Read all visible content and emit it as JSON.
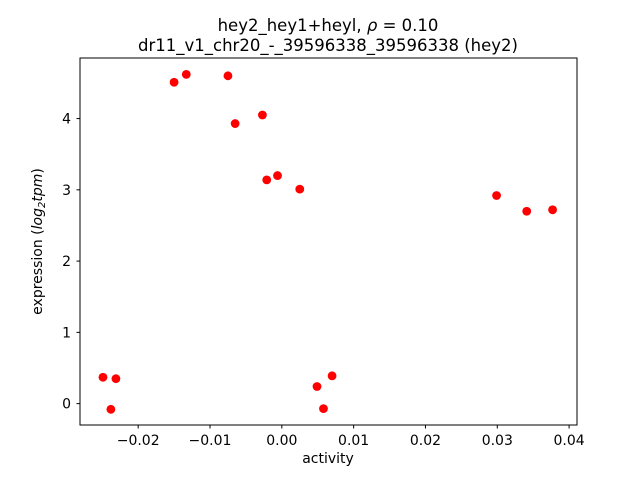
{
  "header": {
    "title_line1_prefix": "hey2_hey1+heyl, ",
    "title_line1_rho": "ρ",
    "title_line1_suffix": " = 0.10",
    "title_line2": "dr11_v1_chr20_-_39596338_39596338 (hey2)"
  },
  "ylabel_parts": {
    "prefix": "expression (",
    "log": "log",
    "sub": "2",
    "tpm": "tpm",
    "suffix": ")"
  },
  "chart_data": {
    "type": "scatter",
    "title": "hey2_hey1+heyl, ρ = 0.10\ndr11_v1_chr20_-_39596338_39596338 (hey2)",
    "xlabel": "activity",
    "ylabel": "expression (log2tpm)",
    "marker_color": "#ff0000",
    "marker_radius_px": 4.4,
    "grid": false,
    "legend": "none",
    "xlim": [
      -0.0281,
      0.0411
    ],
    "ylim": [
      -0.3,
      4.85
    ],
    "xticks": {
      "values": [
        -0.02,
        -0.01,
        0.0,
        0.01,
        0.02,
        0.03,
        0.04
      ],
      "labels": [
        "−0.02",
        "−0.01",
        "0.00",
        "0.01",
        "0.02",
        "0.03",
        "0.04"
      ]
    },
    "yticks": {
      "values": [
        0,
        1,
        2,
        3,
        4
      ],
      "labels": [
        "0",
        "1",
        "2",
        "3",
        "4"
      ]
    },
    "points": [
      [
        -0.015,
        4.51
      ],
      [
        -0.0133,
        4.62
      ],
      [
        -0.0075,
        4.6
      ],
      [
        -0.0065,
        3.93
      ],
      [
        -0.0027,
        4.05
      ],
      [
        -0.0021,
        3.14
      ],
      [
        -0.0006,
        3.2
      ],
      [
        0.0025,
        3.01
      ],
      [
        0.0299,
        2.92
      ],
      [
        0.0341,
        2.7
      ],
      [
        0.0377,
        2.72
      ],
      [
        -0.0249,
        0.37
      ],
      [
        -0.0231,
        0.35
      ],
      [
        -0.0238,
        -0.08
      ],
      [
        0.007,
        0.39
      ],
      [
        0.0049,
        0.24
      ],
      [
        0.0058,
        -0.07
      ]
    ]
  }
}
